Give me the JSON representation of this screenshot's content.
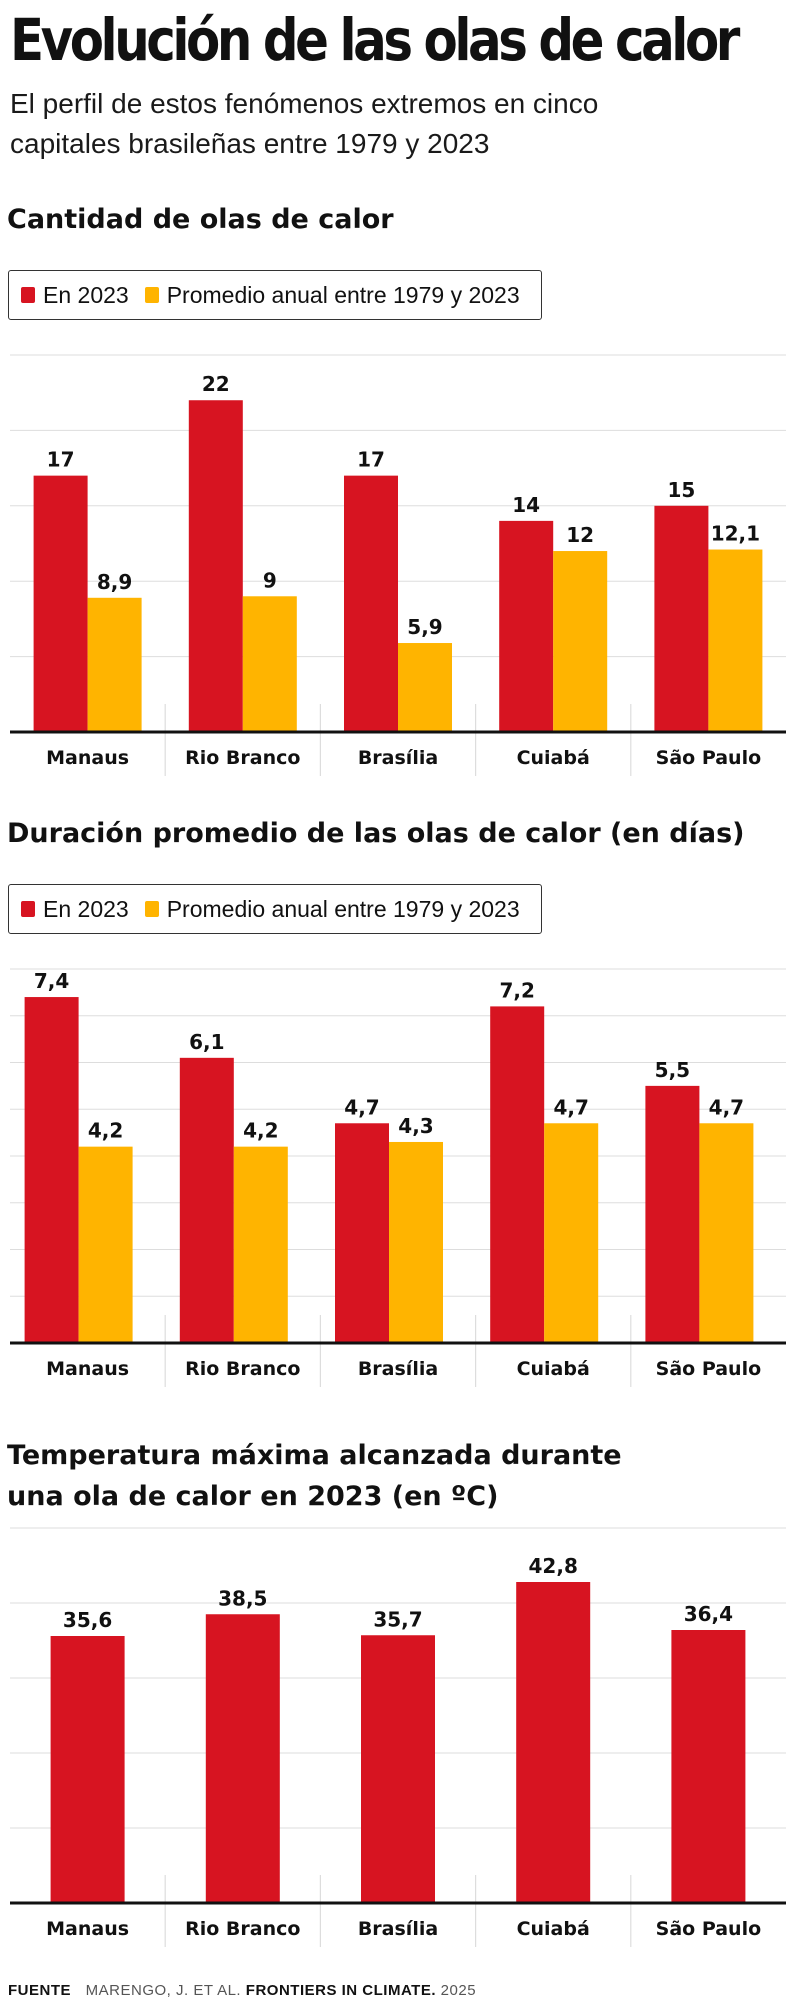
{
  "header": {
    "title": "Evolución de las olas de calor",
    "subtitle_line1": "El perfil de estos fenómenos extremos en cinco",
    "subtitle_line2": "capitales brasileñas entre 1979 y 2023"
  },
  "legend": {
    "series_2023": "En 2023",
    "series_avg": "Promedio anual entre 1979 y 2023"
  },
  "colors": {
    "red": "#d71421",
    "yellow": "#ffb400"
  },
  "chart_data": [
    {
      "type": "bar",
      "title": "Cantidad de olas de calor",
      "categories": [
        "Manaus",
        "Rio Branco",
        "Brasília",
        "Cuiabá",
        "São Paulo"
      ],
      "ylim": [
        0,
        25
      ],
      "grid_step": 5,
      "series": [
        {
          "name": "En 2023",
          "values": [
            17,
            22,
            17,
            14,
            15
          ],
          "labels": [
            "17",
            "22",
            "17",
            "14",
            "15"
          ]
        },
        {
          "name": "Promedio anual entre 1979 y 2023",
          "values": [
            8.9,
            9,
            5.9,
            12,
            12.1
          ],
          "labels": [
            "8,9",
            "9",
            "5,9",
            "12",
            "12,1"
          ]
        }
      ]
    },
    {
      "type": "bar",
      "title": "Duración promedio de las olas de calor (en días)",
      "categories": [
        "Manaus",
        "Rio Branco",
        "Brasília",
        "Cuiabá",
        "São Paulo"
      ],
      "ylim": [
        0,
        8
      ],
      "grid_step": 1,
      "series": [
        {
          "name": "En 2023",
          "values": [
            7.4,
            6.1,
            4.7,
            7.2,
            5.5
          ],
          "labels": [
            "7,4",
            "6,1",
            "4,7",
            "7,2",
            "5,5"
          ]
        },
        {
          "name": "Promedio anual entre 1979 y 2023",
          "values": [
            4.2,
            4.2,
            4.3,
            4.7,
            4.7
          ],
          "labels": [
            "4,2",
            "4,2",
            "4,3",
            "4,7",
            "4,7"
          ]
        }
      ]
    },
    {
      "type": "bar",
      "title_line1": "Temperatura máxima alcanzada durante",
      "title_line2": "una ola de calor en 2023 (en ºC)",
      "categories": [
        "Manaus",
        "Rio Branco",
        "Brasília",
        "Cuiabá",
        "São Paulo"
      ],
      "ylim": [
        0,
        50
      ],
      "grid_step": 10,
      "series": [
        {
          "name": "En 2023",
          "values": [
            35.6,
            38.5,
            35.7,
            42.8,
            36.4
          ],
          "labels": [
            "35,6",
            "38,5",
            "35,7",
            "42,8",
            "36,4"
          ]
        }
      ]
    }
  ],
  "source": {
    "label": "FUENTE",
    "text": "MARENGO, J. ET AL.",
    "journal": "FRONTIERS IN CLIMATE.",
    "year": "2025"
  }
}
